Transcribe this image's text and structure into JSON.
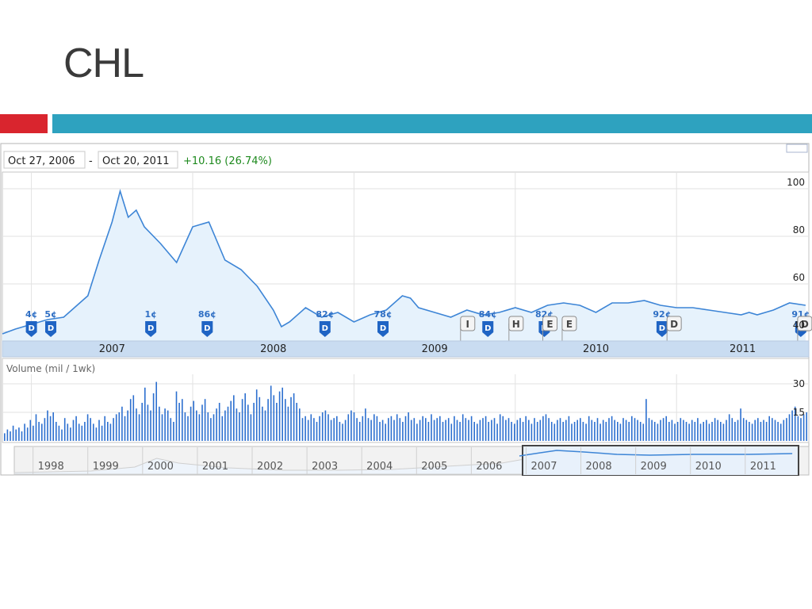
{
  "slide": {
    "title": "CHL"
  },
  "colors": {
    "accent_red": "#d9252e",
    "accent_blue": "#2ea2bf",
    "line": "#3d85d6",
    "fill": "#e6f2fc"
  },
  "header": {
    "start_date": "Oct 27, 2006",
    "dash": "-",
    "end_date": "Oct 20, 2011",
    "change": "+10.16 (26.74%)"
  },
  "volume_label": "Volume (mil / 1wk)",
  "chart_data": [
    {
      "type": "line",
      "title": "",
      "x_ticks": [
        "2007",
        "2008",
        "2009",
        "2010",
        "2011"
      ],
      "y_ticks": [
        100,
        80,
        60,
        40
      ],
      "ylim": [
        36,
        106
      ],
      "x": [
        2006.82,
        2006.9,
        2007.0,
        2007.1,
        2007.2,
        2007.3,
        2007.35,
        2007.42,
        2007.5,
        2007.55,
        2007.6,
        2007.65,
        2007.7,
        2007.8,
        2007.9,
        2008.0,
        2008.1,
        2008.2,
        2008.3,
        2008.4,
        2008.5,
        2008.55,
        2008.6,
        2008.7,
        2008.8,
        2008.9,
        2009.0,
        2009.1,
        2009.2,
        2009.3,
        2009.35,
        2009.4,
        2009.5,
        2009.6,
        2009.7,
        2009.8,
        2009.9,
        2010.0,
        2010.1,
        2010.2,
        2010.3,
        2010.4,
        2010.5,
        2010.6,
        2010.7,
        2010.8,
        2010.9,
        2011.0,
        2011.1,
        2011.2,
        2011.3,
        2011.4,
        2011.45,
        2011.5,
        2011.6,
        2011.7,
        2011.8
      ],
      "y": [
        39,
        41,
        43,
        45,
        46,
        52,
        55,
        70,
        86,
        99,
        88,
        91,
        84,
        77,
        69,
        84,
        86,
        70,
        66,
        59,
        49,
        42,
        44,
        50,
        46,
        48,
        44,
        47,
        49,
        55,
        54,
        50,
        48,
        46,
        49,
        47,
        48,
        50,
        48,
        51,
        52,
        51,
        48,
        52,
        52,
        53,
        51,
        50,
        50,
        49,
        48,
        47,
        48,
        47,
        49,
        52,
        51
      ],
      "dividends": [
        {
          "label": "4¢",
          "marker": "D"
        },
        {
          "label": "5¢",
          "marker": "D"
        },
        {
          "label": "1¢",
          "marker": "D"
        },
        {
          "label": "86¢",
          "marker": "D"
        },
        {
          "label": "82¢",
          "marker": "D"
        },
        {
          "label": "78¢",
          "marker": "D"
        },
        {
          "label": "84¢",
          "marker": "D"
        },
        {
          "label": "82¢",
          "marker": "D"
        },
        {
          "label": "92¢",
          "marker": "D"
        },
        {
          "label": "91¢",
          "marker": "D"
        }
      ],
      "flags": [
        "I",
        "H",
        "E",
        "E",
        "D",
        "D"
      ]
    },
    {
      "type": "bar",
      "title": "Volume (mil / 1wk)",
      "y_ticks": [
        30,
        15
      ],
      "ylim": [
        0,
        35
      ],
      "values": [
        4,
        6,
        5,
        8,
        6,
        7,
        5,
        9,
        7,
        11,
        8,
        14,
        10,
        9,
        12,
        16,
        13,
        15,
        10,
        8,
        6,
        12,
        9,
        7,
        11,
        13,
        9,
        8,
        10,
        14,
        12,
        9,
        7,
        11,
        8,
        13,
        10,
        9,
        12,
        14,
        15,
        18,
        13,
        16,
        22,
        24,
        17,
        14,
        20,
        28,
        19,
        16,
        25,
        31,
        18,
        14,
        17,
        16,
        12,
        10,
        26,
        20,
        22,
        15,
        13,
        18,
        21,
        16,
        14,
        19,
        22,
        15,
        12,
        14,
        17,
        20,
        13,
        16,
        18,
        21,
        24,
        17,
        15,
        22,
        25,
        19,
        14,
        20,
        27,
        23,
        18,
        16,
        22,
        29,
        24,
        20,
        26,
        28,
        22,
        18,
        23,
        25,
        20,
        17,
        12,
        13,
        11,
        14,
        12,
        10,
        13,
        15,
        16,
        14,
        11,
        12,
        13,
        10,
        9,
        11,
        14,
        16,
        15,
        12,
        10,
        13,
        17,
        12,
        11,
        14,
        13,
        10,
        11,
        9,
        12,
        13,
        11,
        14,
        12,
        10,
        13,
        15,
        11,
        12,
        9,
        11,
        13,
        12,
        10,
        14,
        11,
        12,
        13,
        10,
        11,
        12,
        9,
        13,
        11,
        10,
        14,
        12,
        11,
        13,
        10,
        9,
        11,
        12,
        13,
        10,
        11,
        12,
        9,
        14,
        13,
        11,
        12,
        10,
        9,
        11,
        12,
        10,
        13,
        11,
        9,
        12,
        10,
        11,
        13,
        14,
        12,
        10,
        9,
        11,
        12,
        10,
        11,
        13,
        9,
        10,
        11,
        12,
        10,
        9,
        13,
        11,
        10,
        12,
        9,
        11,
        10,
        12,
        13,
        11,
        10,
        9,
        12,
        11,
        10,
        13,
        12,
        11,
        10,
        9,
        22,
        12,
        11,
        10,
        9,
        11,
        12,
        13,
        10,
        11,
        9,
        10,
        12,
        11,
        10,
        9,
        11,
        10,
        12,
        9,
        10,
        11,
        9,
        10,
        12,
        11,
        10,
        9,
        11,
        14,
        12,
        10,
        11,
        17,
        12,
        11,
        10,
        9,
        11,
        12,
        10,
        11,
        10,
        13,
        12,
        11,
        10,
        9,
        11,
        12,
        14,
        16,
        18,
        13,
        12,
        14,
        15
      ]
    },
    {
      "type": "area",
      "title": "",
      "x_ticks": [
        "1998",
        "1999",
        "2000",
        "2001",
        "2002",
        "2003",
        "2004",
        "2005",
        "2006",
        "2007",
        "2008",
        "2009",
        "2010",
        "2011"
      ]
    }
  ]
}
